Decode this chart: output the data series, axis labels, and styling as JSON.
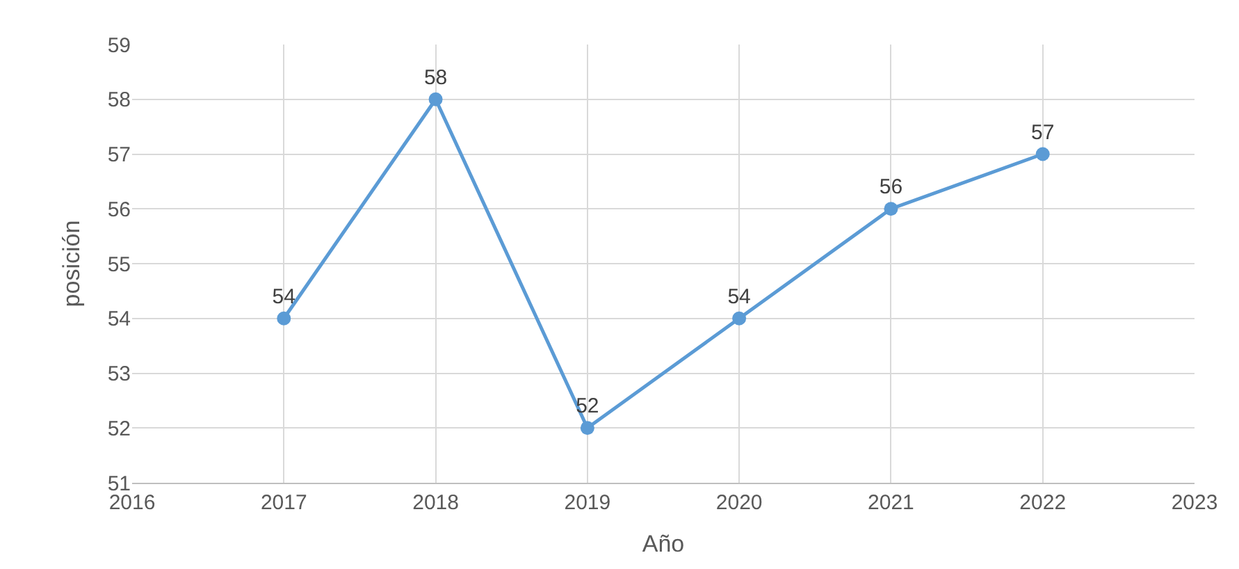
{
  "chart_data": {
    "type": "line",
    "xlabel": "Año",
    "ylabel": "posición",
    "x": [
      2017,
      2018,
      2019,
      2020,
      2021,
      2022
    ],
    "series": [
      {
        "color": "#5b9bd5",
        "values": [
          54,
          58,
          52,
          54,
          56,
          57
        ]
      }
    ],
    "xlim": [
      2016,
      2023
    ],
    "xticks": [
      2016,
      2017,
      2018,
      2019,
      2020,
      2021,
      2022,
      2023
    ],
    "ylim": [
      51,
      59
    ],
    "yticks": [
      51,
      52,
      53,
      54,
      55,
      56,
      57,
      58,
      59
    ],
    "grid": true,
    "marker": "circle",
    "line_style": "solid",
    "data_labels": true
  }
}
